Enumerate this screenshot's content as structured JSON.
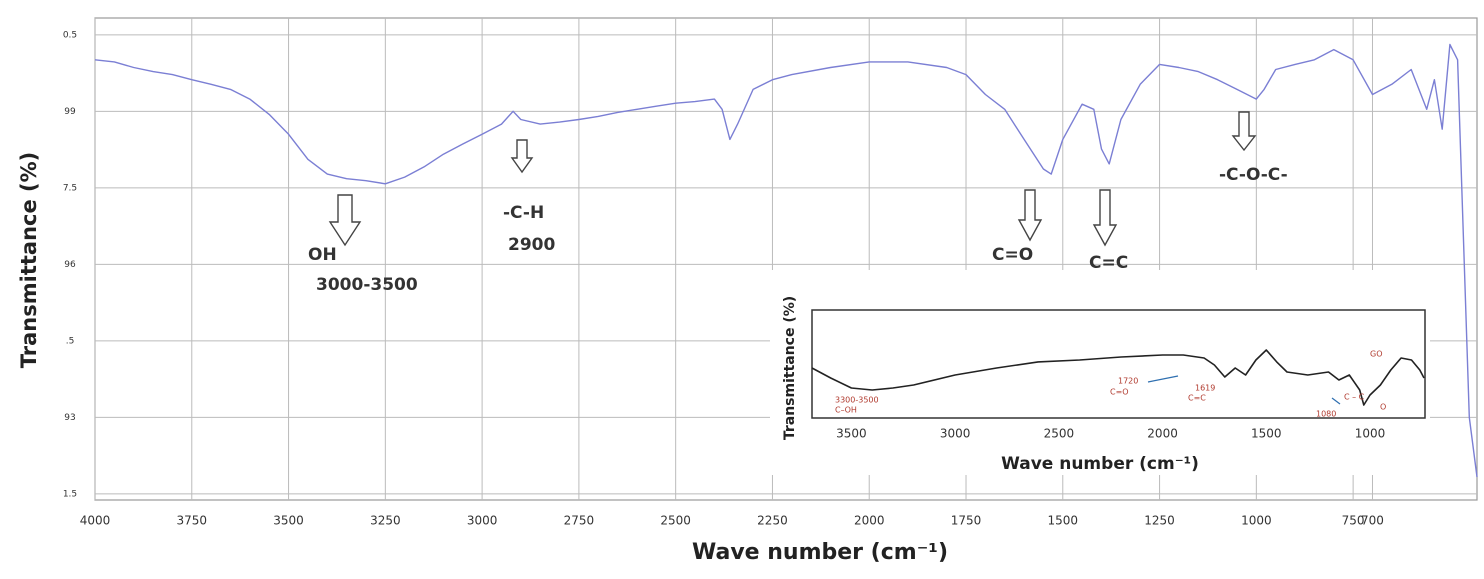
{
  "chart_data": [
    {
      "type": "line",
      "x_label": "Wave number (cm⁻¹)",
      "y_label": "Transmittance (%)",
      "x": [
        4000,
        3950,
        3900,
        3850,
        3800,
        3750,
        3700,
        3650,
        3600,
        3550,
        3500,
        3450,
        3400,
        3350,
        3300,
        3250,
        3200,
        3150,
        3100,
        3050,
        3000,
        2950,
        2920,
        2900,
        2850,
        2800,
        2750,
        2700,
        2650,
        2600,
        2550,
        2500,
        2450,
        2400,
        2380,
        2360,
        2340,
        2300,
        2250,
        2200,
        2100,
        2000,
        1900,
        1800,
        1750,
        1700,
        1650,
        1600,
        1550,
        1530,
        1500,
        1450,
        1420,
        1400,
        1380,
        1350,
        1300,
        1250,
        1200,
        1150,
        1100,
        1050,
        1000,
        980,
        950,
        900,
        850,
        800,
        750,
        700,
        650,
        600,
        560,
        540,
        520,
        500,
        480,
        450,
        430
      ],
      "values": [
        100.01,
        99.97,
        99.86,
        99.78,
        99.72,
        99.62,
        99.53,
        99.43,
        99.24,
        98.94,
        98.55,
        98.06,
        97.77,
        97.68,
        97.64,
        97.58,
        97.71,
        97.91,
        98.16,
        98.36,
        98.55,
        98.75,
        99.0,
        98.84,
        98.75,
        98.79,
        98.84,
        98.9,
        98.98,
        99.04,
        99.1,
        99.16,
        99.19,
        99.24,
        99.04,
        98.45,
        98.75,
        99.43,
        99.62,
        99.72,
        99.86,
        99.97,
        99.97,
        99.86,
        99.72,
        99.33,
        99.04,
        98.45,
        97.87,
        97.77,
        98.45,
        99.14,
        99.04,
        98.26,
        97.97,
        98.84,
        99.53,
        99.92,
        99.86,
        99.78,
        99.62,
        99.43,
        99.24,
        99.43,
        99.82,
        99.92,
        100.01,
        100.21,
        100.01,
        99.33,
        99.53,
        99.82,
        99.04,
        99.62,
        98.65,
        100.31,
        100.01,
        93.0,
        91.83
      ],
      "color": "#7b7fd4",
      "xlim": [
        4000,
        430
      ],
      "ylim": [
        91.38,
        100.83
      ],
      "xticks": [
        4000,
        3750,
        3500,
        3250,
        3000,
        2750,
        2500,
        2250,
        2000,
        1750,
        1500,
        1250,
        1000,
        750,
        700
      ],
      "yticks": [
        {
          "value": 100.5,
          "label": "0.5"
        },
        99,
        {
          "value": 97.5,
          "label": "7.5"
        },
        96,
        {
          "value": 94.5,
          "label": ".5"
        },
        93,
        {
          "value": 91.5,
          "label": "1.5"
        }
      ],
      "grid": true,
      "annotations": [
        "OH",
        "3000-3500",
        "-C-H",
        "2900",
        "C=O",
        "C=C",
        "-C-O-C-"
      ]
    },
    {
      "type": "line",
      "x_label": "Wave number (cm⁻¹)",
      "y_label": "Transmittance (%)",
      "x": [
        3690,
        3600,
        3500,
        3400,
        3300,
        3200,
        3000,
        2800,
        2600,
        2400,
        2200,
        2000,
        1900,
        1800,
        1750,
        1700,
        1650,
        1600,
        1550,
        1500,
        1450,
        1400,
        1300,
        1200,
        1150,
        1100,
        1050,
        1030,
        1000,
        950,
        900,
        850,
        800,
        760,
        740
      ],
      "values": [
        46.3,
        37.0,
        27.8,
        25.9,
        27.8,
        30.6,
        39.8,
        46.3,
        51.9,
        53.7,
        56.5,
        58.3,
        58.3,
        55.6,
        49.1,
        38.0,
        46.3,
        39.8,
        53.7,
        63.0,
        51.9,
        42.6,
        39.8,
        42.6,
        35.2,
        39.8,
        25.9,
        12.0,
        21.3,
        30.6,
        44.4,
        55.6,
        53.7,
        44.4,
        37.0
      ],
      "color": "#222222",
      "xlim": [
        3690,
        735
      ],
      "ylim": [
        0,
        100
      ],
      "xticks": [
        3500,
        3000,
        2500,
        2000,
        1500,
        1000
      ],
      "grid": false,
      "annotations": [
        "3300-3500",
        "C–OH",
        "1720",
        "C=O",
        "1619",
        "C=C",
        "1080",
        "C – C",
        "O",
        "GO"
      ]
    }
  ]
}
